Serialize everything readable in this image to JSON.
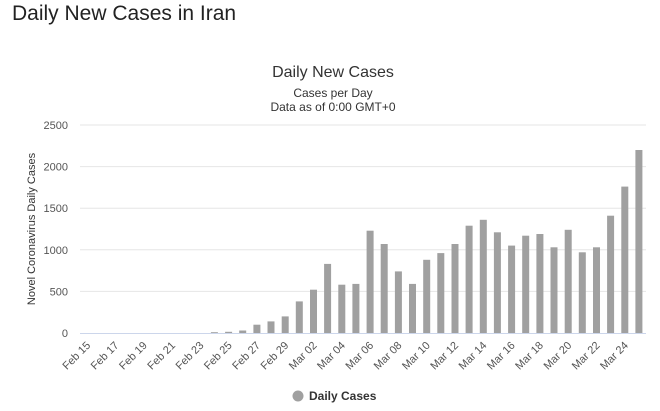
{
  "page": {
    "heading": "Daily New Cases in Iran"
  },
  "colors": {
    "bar": "#a0a0a0",
    "grid": "#e6e6e6",
    "axis": "#ccd6eb"
  },
  "chart_data": {
    "type": "bar",
    "title": "Daily New Cases",
    "subtitle": [
      "Cases per Day",
      "Data as of 0:00 GMT+0"
    ],
    "ylabel": "Novel Coronavirus Daily Cases",
    "xlabel": "",
    "ylim": [
      0,
      2500
    ],
    "yticks": [
      0,
      500,
      1000,
      1500,
      2000,
      2500
    ],
    "grid": true,
    "legend": {
      "position": "bottom-center",
      "entries": [
        "Daily Cases"
      ]
    },
    "categories": [
      "Feb 15",
      "Feb 16",
      "Feb 17",
      "Feb 18",
      "Feb 19",
      "Feb 20",
      "Feb 21",
      "Feb 22",
      "Feb 23",
      "Feb 24",
      "Feb 25",
      "Feb 26",
      "Feb 27",
      "Feb 28",
      "Feb 29",
      "Mar 01",
      "Mar 02",
      "Mar 03",
      "Mar 04",
      "Mar 05",
      "Mar 06",
      "Mar 07",
      "Mar 08",
      "Mar 09",
      "Mar 10",
      "Mar 11",
      "Mar 12",
      "Mar 13",
      "Mar 14",
      "Mar 15",
      "Mar 16",
      "Mar 17",
      "Mar 18",
      "Mar 19",
      "Mar 20",
      "Mar 21",
      "Mar 22",
      "Mar 23",
      "Mar 24",
      "Mar 25"
    ],
    "tick_labels": [
      "Feb 15",
      "Feb 17",
      "Feb 19",
      "Feb 21",
      "Feb 23",
      "Feb 25",
      "Feb 27",
      "Feb 29",
      "Mar 02",
      "Mar 04",
      "Mar 06",
      "Mar 08",
      "Mar 10",
      "Mar 12",
      "Mar 14",
      "Mar 16",
      "Mar 18",
      "Mar 20",
      "Mar 22",
      "Mar 24"
    ],
    "series": [
      {
        "name": "Daily Cases",
        "values": [
          0,
          0,
          0,
          0,
          0,
          0,
          0,
          0,
          0,
          10,
          15,
          30,
          100,
          140,
          200,
          380,
          520,
          830,
          580,
          590,
          1230,
          1070,
          740,
          590,
          880,
          960,
          1070,
          1290,
          1360,
          1210,
          1050,
          1170,
          1190,
          1030,
          1240,
          970,
          1030,
          1410,
          1760,
          2200
        ]
      }
    ]
  }
}
